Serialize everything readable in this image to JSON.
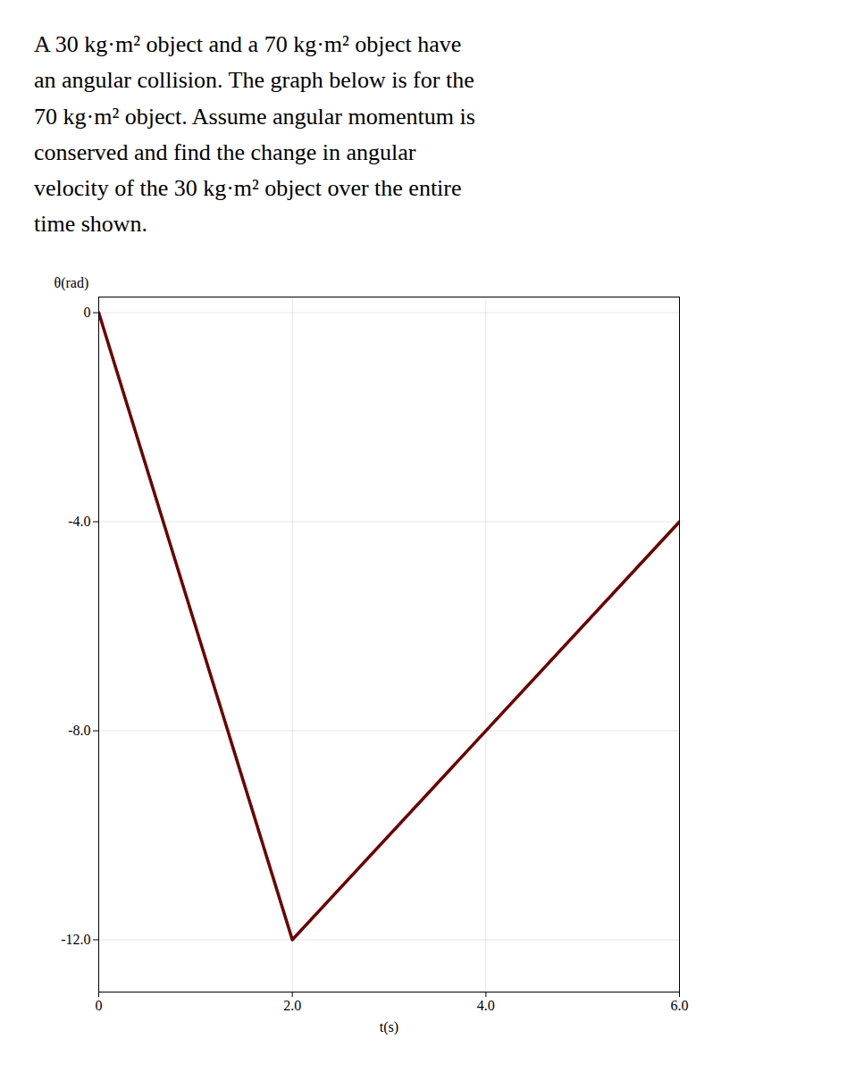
{
  "chart_data": {
    "type": "line",
    "title": [
      "A 30 kg·m² object and a 70 kg·m² object have",
      "an angular collision. The graph below is for the",
      "70 kg·m² object. Assume angular momentum is",
      "conserved and find the change in angular",
      "velocity of the 30 kg·m² object over the entire",
      "time shown."
    ],
    "x": [
      0,
      2,
      6
    ],
    "values": [
      0,
      -12,
      -4
    ],
    "color": "#6B0000",
    "xlabel": "t(s)",
    "ylabel": "θ(rad)",
    "xlim": [
      0,
      6.0
    ],
    "ylim": [
      -13.0,
      0.3
    ],
    "xticks": [
      0,
      {
        "value": 2.0,
        "label": "2.0"
      },
      {
        "value": 4.0,
        "label": "4.0"
      },
      {
        "value": 6.0,
        "label": "6.0"
      }
    ],
    "yticks": [
      {
        "value": -12.0,
        "label": "-12.0"
      },
      {
        "value": -8.0,
        "label": "-8.0"
      },
      {
        "value": -4.0,
        "label": "-4.0"
      },
      0
    ],
    "grid": true
  }
}
